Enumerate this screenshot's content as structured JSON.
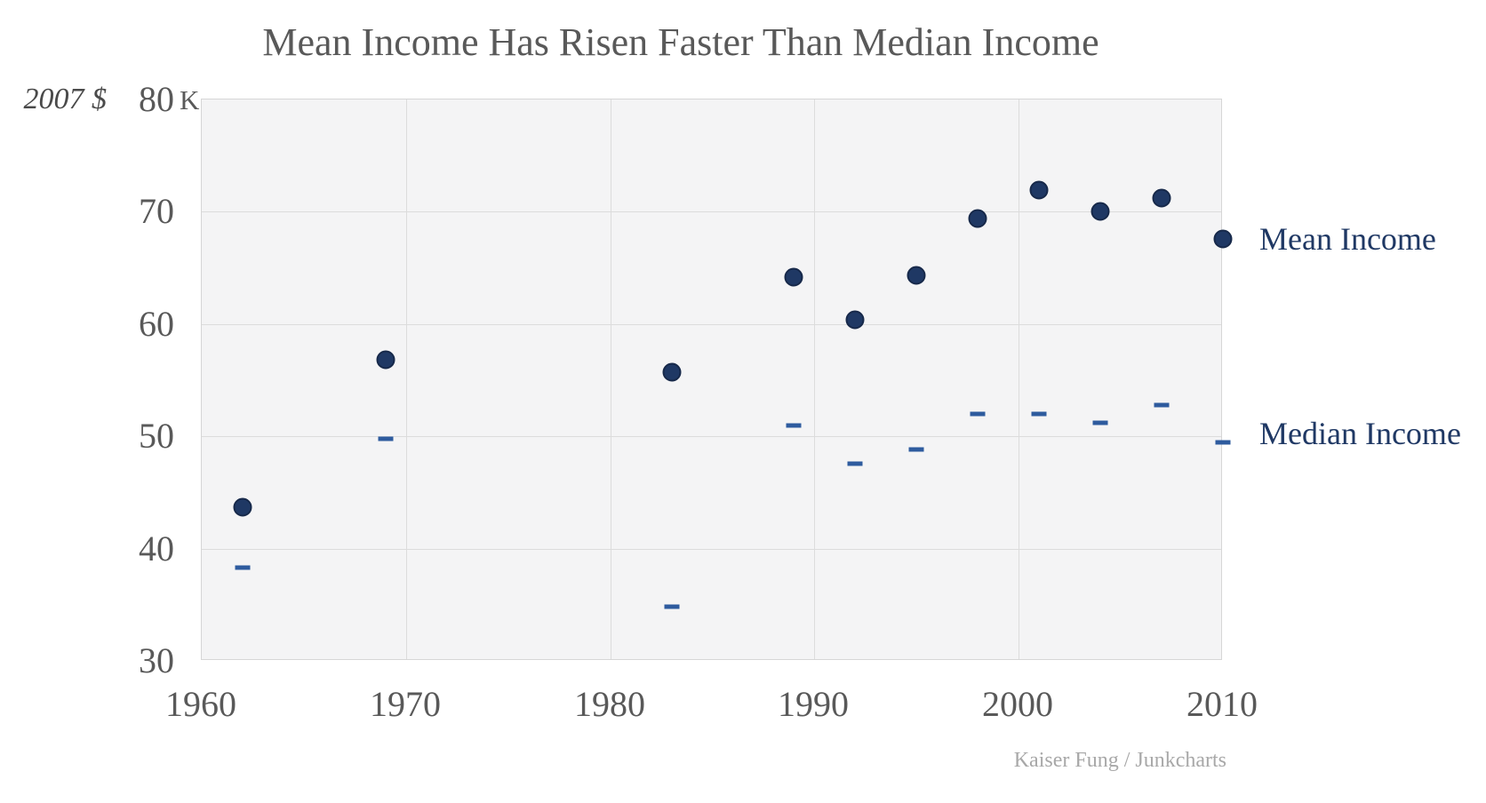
{
  "title": "Mean Income Has Risen Faster Than Median Income",
  "y_axis": {
    "unit_label": "2007 $",
    "top_tick_suffix": "K"
  },
  "attribution": "Kaiser Fung / Junkcharts",
  "legend": {
    "mean_label": "Mean Income",
    "median_label": "Median Income"
  },
  "colors": {
    "mean_marker": "#1f3864",
    "mean_marker_outline": "#17294a",
    "median_marker": "#2e5b9e",
    "legend_text": "#1f3864",
    "axis_text": "#595959",
    "attribution_text": "#a8a8a8",
    "plot_background": "#f4f4f5",
    "gridline": "#dcdcdc"
  },
  "chart_data": {
    "type": "scatter",
    "title": "Mean Income Has Risen Faster Than Median Income",
    "x": [
      1962,
      1969,
      1983,
      1989,
      1992,
      1995,
      1998,
      2001,
      2004,
      2007,
      2010
    ],
    "series": [
      {
        "name": "Mean Income",
        "marker": "circle",
        "color": "#1f3864",
        "values": [
          43.7,
          56.8,
          55.7,
          64.2,
          60.4,
          64.3,
          69.4,
          71.9,
          70.0,
          71.2,
          67.6
        ]
      },
      {
        "name": "Median Income",
        "marker": "dash",
        "color": "#2e5b9e",
        "values": [
          38.3,
          49.8,
          34.8,
          51.0,
          47.6,
          48.8,
          52.0,
          52.0,
          51.2,
          52.8,
          49.5
        ]
      }
    ],
    "xlabel": "",
    "ylabel": "2007 $ (thousands)",
    "xlim": [
      1960,
      2010
    ],
    "ylim": [
      30,
      80
    ],
    "x_ticks": [
      1960,
      1970,
      1980,
      1990,
      2000,
      2010
    ],
    "y_ticks": [
      30,
      40,
      50,
      60,
      70,
      80
    ],
    "y_top_tick_label": "80 K",
    "grid": true,
    "legend_position": "right",
    "annotations": [
      "Kaiser Fung / Junkcharts"
    ]
  }
}
